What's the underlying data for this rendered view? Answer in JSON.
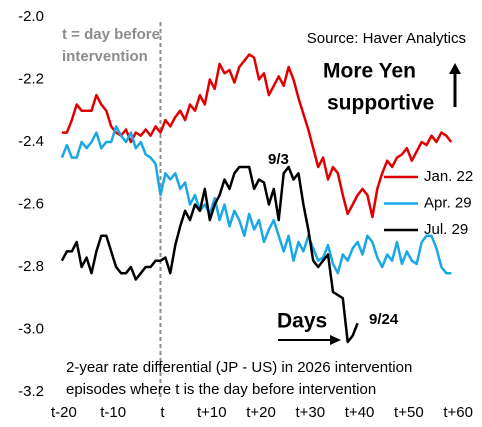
{
  "chart_data": {
    "type": "line",
    "x": [
      -20,
      -19,
      -18,
      -17,
      -16,
      -15,
      -14,
      -13,
      -12,
      -11,
      -10,
      -9,
      -8,
      -7,
      -6,
      -5,
      -4,
      -3,
      -2,
      -1,
      0,
      1,
      2,
      3,
      4,
      5,
      6,
      7,
      8,
      9,
      10,
      11,
      12,
      13,
      14,
      15,
      16,
      17,
      18,
      19,
      20,
      21,
      22,
      23,
      24,
      25,
      26,
      27,
      28,
      29,
      30,
      31,
      32,
      33,
      34,
      35,
      36,
      37,
      38,
      39,
      40,
      41,
      42,
      43,
      44,
      45,
      46,
      47,
      48,
      49,
      50,
      51,
      52,
      53,
      54,
      55,
      56,
      57,
      58,
      59
    ],
    "series": [
      {
        "name": "Jan. 22",
        "color": "#e00000",
        "values": [
          -2.37,
          -2.37,
          -2.33,
          -2.28,
          -2.3,
          -2.3,
          -2.3,
          -2.25,
          -2.28,
          -2.3,
          -2.35,
          -2.37,
          -2.38,
          -2.36,
          -2.4,
          -2.37,
          -2.38,
          -2.36,
          -2.38,
          -2.35,
          -2.37,
          -2.33,
          -2.35,
          -2.32,
          -2.3,
          -2.33,
          -2.28,
          -2.3,
          -2.25,
          -2.28,
          -2.2,
          -2.23,
          -2.15,
          -2.18,
          -2.17,
          -2.21,
          -2.16,
          -2.14,
          -2.12,
          -2.13,
          -2.2,
          -2.18,
          -2.25,
          -2.22,
          -2.19,
          -2.22,
          -2.16,
          -2.2,
          -2.26,
          -2.31,
          -2.36,
          -2.42,
          -2.48,
          -2.45,
          -2.52,
          -2.48,
          -2.5,
          -2.57,
          -2.63,
          -2.6,
          -2.57,
          -2.55,
          -2.57,
          -2.64,
          -2.55,
          -2.5,
          -2.46,
          -2.48,
          -2.45,
          -2.44,
          -2.42,
          -2.46,
          -2.43,
          -2.4,
          -2.41,
          -2.38,
          -2.4,
          -2.37,
          -2.38,
          -2.4
        ]
      },
      {
        "name": "Apr. 29",
        "color": "#1aa7e6",
        "values": [
          -2.45,
          -2.41,
          -2.45,
          -2.45,
          -2.4,
          -2.42,
          -2.4,
          -2.37,
          -2.42,
          -2.4,
          -2.4,
          -2.35,
          -2.38,
          -2.4,
          -2.37,
          -2.42,
          -2.4,
          -2.44,
          -2.45,
          -2.47,
          -2.57,
          -2.5,
          -2.52,
          -2.5,
          -2.55,
          -2.53,
          -2.6,
          -2.57,
          -2.62,
          -2.6,
          -2.63,
          -2.58,
          -2.65,
          -2.6,
          -2.67,
          -2.62,
          -2.65,
          -2.7,
          -2.63,
          -2.68,
          -2.65,
          -2.72,
          -2.68,
          -2.65,
          -2.7,
          -2.75,
          -2.7,
          -2.78,
          -2.72,
          -2.75,
          -2.7,
          -2.74,
          -2.78,
          -2.77,
          -2.73,
          -2.79,
          -2.82,
          -2.76,
          -2.78,
          -2.74,
          -2.72,
          -2.76,
          -2.7,
          -2.72,
          -2.77,
          -2.8,
          -2.76,
          -2.78,
          -2.72,
          -2.79,
          -2.75,
          -2.78,
          -2.79,
          -2.72,
          -2.7,
          -2.7,
          -2.74,
          -2.8,
          -2.82,
          -2.82
        ]
      },
      {
        "name": "Jul. 29",
        "color": "#000000",
        "values": [
          -2.78,
          -2.75,
          -2.75,
          -2.72,
          -2.8,
          -2.77,
          -2.82,
          -2.75,
          -2.7,
          -2.7,
          -2.75,
          -2.8,
          -2.82,
          -2.82,
          -2.8,
          -2.84,
          -2.82,
          -2.8,
          -2.8,
          -2.78,
          -2.78,
          -2.77,
          -2.82,
          -2.73,
          -2.67,
          -2.62,
          -2.65,
          -2.6,
          -2.62,
          -2.55,
          -2.65,
          -2.6,
          -2.57,
          -2.52,
          -2.55,
          -2.5,
          -2.48,
          -2.48,
          -2.48,
          -2.55,
          -2.52,
          -2.53,
          -2.6,
          -2.55,
          -2.65,
          -2.5,
          -2.48,
          -2.52,
          -2.5,
          -2.6,
          -2.68,
          -2.78,
          -2.8,
          -2.78,
          -2.76,
          -2.88,
          -2.89,
          -2.9,
          -3.04,
          -3.02,
          -2.98,
          null,
          null,
          null,
          null,
          null,
          null,
          null,
          null,
          null,
          null,
          null,
          null,
          null,
          null,
          null,
          null,
          null,
          null,
          null
        ]
      }
    ],
    "xlim": [
      -21,
      62
    ],
    "xticks": [
      {
        "value": -20,
        "label": "t-20"
      },
      {
        "value": -10,
        "label": "t-10"
      },
      {
        "value": 0,
        "label": "t"
      },
      {
        "value": 10,
        "label": "t+10"
      },
      {
        "value": 20,
        "label": "t+20"
      },
      {
        "value": 30,
        "label": "t+30"
      },
      {
        "value": 40,
        "label": "t+40"
      },
      {
        "value": 50,
        "label": "t+50"
      },
      {
        "value": 60,
        "label": "t+60"
      }
    ],
    "ylim": [
      -3.2,
      -2
    ],
    "yticks": [
      {
        "value": -2,
        "label": "-2.0"
      },
      -2.2,
      -2.4,
      -2.6,
      -2.8,
      {
        "value": -3,
        "label": "-3.0"
      },
      -3.2
    ],
    "legend": "right",
    "annotations": [
      {
        "lines": [
          "t = day before",
          "intervention"
        ]
      },
      {
        "lines": [
          "Source: Haver Analytics"
        ]
      },
      {
        "lines": [
          "More Yen",
          "supportive"
        ]
      },
      {
        "lines": [
          "9/3"
        ]
      },
      {
        "lines": [
          "Days"
        ]
      },
      {
        "lines": [
          "9/24"
        ]
      },
      {
        "lines": [
          "2-year rate differential (JP - US) in 2026 intervention",
          "episodes where t is the day before intervention"
        ]
      }
    ]
  }
}
